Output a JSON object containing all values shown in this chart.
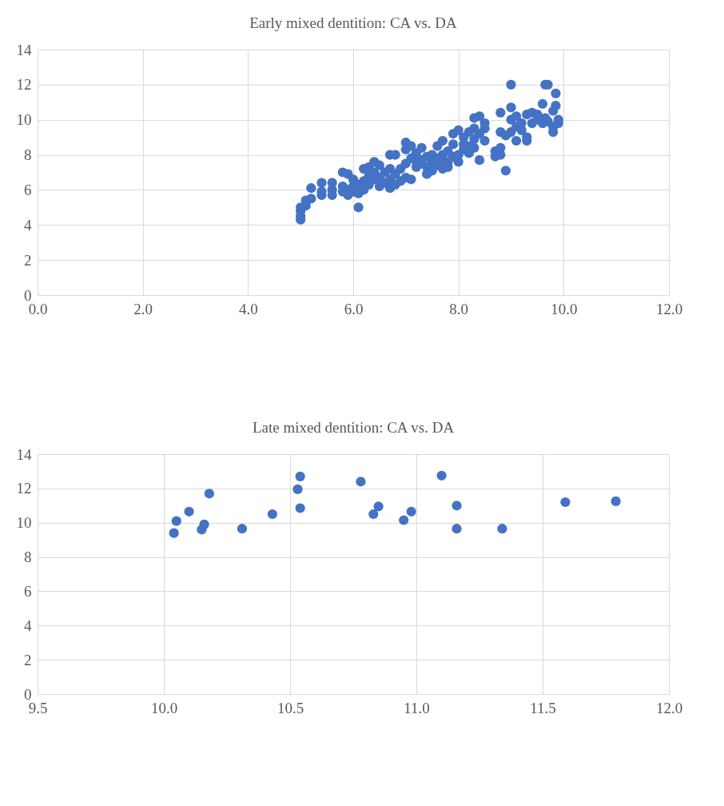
{
  "chart_data": [
    {
      "type": "scatter",
      "title": "Early mixed dentition: CA vs. DA",
      "marker": "circle",
      "grid": true,
      "xlim": [
        0,
        12
      ],
      "xticks": [
        {
          "value": 0,
          "label": "0.0"
        },
        {
          "value": 2,
          "label": "2.0"
        },
        {
          "value": 4,
          "label": "4.0"
        },
        {
          "value": 6,
          "label": "6.0"
        },
        {
          "value": 8,
          "label": "8.0"
        },
        {
          "value": 10,
          "label": "10.0"
        },
        {
          "value": 12,
          "label": "12.0"
        }
      ],
      "ylim": [
        0,
        14
      ],
      "yticks": [
        0,
        2,
        4,
        6,
        8,
        10,
        12,
        14
      ],
      "series": [
        {
          "color": "#4472c4",
          "x": [
            5.0,
            5.0,
            5.0,
            5.0,
            5.1,
            5.1,
            5.2,
            5.2,
            5.4,
            5.4,
            5.4,
            5.6,
            5.6,
            5.6,
            5.8,
            5.8,
            5.8,
            5.9,
            5.9,
            5.9,
            6.0,
            6.0,
            6.0,
            6.1,
            6.1,
            6.1,
            6.2,
            6.2,
            6.2,
            6.3,
            6.3,
            6.3,
            6.4,
            6.4,
            6.4,
            6.5,
            6.5,
            6.5,
            6.6,
            6.6,
            6.7,
            6.7,
            6.7,
            6.7,
            6.8,
            6.8,
            6.8,
            6.9,
            6.9,
            7.0,
            7.0,
            7.0,
            7.0,
            7.1,
            7.1,
            7.1,
            7.2,
            7.2,
            7.2,
            7.3,
            7.3,
            7.3,
            7.4,
            7.4,
            7.4,
            7.5,
            7.5,
            7.5,
            7.6,
            7.6,
            7.6,
            7.7,
            7.7,
            7.7,
            7.7,
            7.8,
            7.8,
            7.8,
            7.9,
            7.9,
            7.9,
            8.0,
            8.0,
            8.0,
            8.1,
            8.1,
            8.1,
            8.2,
            8.2,
            8.2,
            8.3,
            8.3,
            8.3,
            8.3,
            8.4,
            8.4,
            8.4,
            8.5,
            8.5,
            8.5,
            8.7,
            8.7,
            8.8,
            8.8,
            8.8,
            8.8,
            8.9,
            8.9,
            9.0,
            9.0,
            9.0,
            9.0,
            9.1,
            9.1,
            9.1,
            9.2,
            9.2,
            9.3,
            9.3,
            9.3,
            9.4,
            9.4,
            9.5,
            9.5,
            9.6,
            9.6,
            9.65,
            9.65,
            9.7,
            9.7,
            9.8,
            9.8,
            9.8,
            9.85,
            9.85,
            9.9,
            9.9
          ],
          "values": [
            4.3,
            4.5,
            4.8,
            5.0,
            5.1,
            5.4,
            6.1,
            5.5,
            5.7,
            6.4,
            5.9,
            5.7,
            6.4,
            6.0,
            7.0,
            5.9,
            6.2,
            6.9,
            6.0,
            5.7,
            6.6,
            6.2,
            5.9,
            5.0,
            6.3,
            5.8,
            7.2,
            6.5,
            6.0,
            7.3,
            6.8,
            6.3,
            7.6,
            7.0,
            6.6,
            7.4,
            6.7,
            6.2,
            7.0,
            6.4,
            8.0,
            7.2,
            6.6,
            6.1,
            6.9,
            6.3,
            8.0,
            7.2,
            6.5,
            8.7,
            8.3,
            7.5,
            6.7,
            8.5,
            7.8,
            6.6,
            8.1,
            7.6,
            7.3,
            8.4,
            7.7,
            7.5,
            7.9,
            7.3,
            6.9,
            8.0,
            7.6,
            7.1,
            8.5,
            7.8,
            7.4,
            8.8,
            8.0,
            7.2,
            7.5,
            8.2,
            7.6,
            7.3,
            9.2,
            8.6,
            7.9,
            9.4,
            8.0,
            7.6,
            9.0,
            8.3,
            8.6,
            9.3,
            8.5,
            8.1,
            10.1,
            9.5,
            8.9,
            8.4,
            10.2,
            9.2,
            7.7,
            9.8,
            9.5,
            8.8,
            8.2,
            7.9,
            10.4,
            9.3,
            8.0,
            8.4,
            9.1,
            7.1,
            12.0,
            10.7,
            10.0,
            9.3,
            10.2,
            8.8,
            9.6,
            9.8,
            9.4,
            10.3,
            9.0,
            8.8,
            10.4,
            9.8,
            10.3,
            10.0,
            10.9,
            9.8,
            12.0,
            10.1,
            12.0,
            9.9,
            10.5,
            9.6,
            9.3,
            11.5,
            10.8,
            10.0,
            9.8
          ]
        }
      ]
    },
    {
      "type": "scatter",
      "title": "Late mixed dentition: CA vs. DA",
      "marker": "circle",
      "grid": true,
      "xlim": [
        9.5,
        12
      ],
      "xticks": [
        9.5,
        {
          "value": 10,
          "label": "10.0"
        },
        10.5,
        {
          "value": 11,
          "label": "11.0"
        },
        11.5,
        {
          "value": 12,
          "label": "12.0"
        }
      ],
      "ylim": [
        0,
        14
      ],
      "yticks": [
        0,
        2,
        4,
        6,
        8,
        10,
        12,
        14
      ],
      "series": [
        {
          "color": "#4472c4",
          "x": [
            10.05,
            10.04,
            10.1,
            10.15,
            10.16,
            10.18,
            10.31,
            10.43,
            10.53,
            10.54,
            10.54,
            10.78,
            10.83,
            10.85,
            10.95,
            10.98,
            11.1,
            11.16,
            11.16,
            11.34,
            11.59,
            11.79
          ],
          "values": [
            10.1,
            9.4,
            10.65,
            9.6,
            9.9,
            11.7,
            9.65,
            10.5,
            11.95,
            12.7,
            10.85,
            12.4,
            10.5,
            10.95,
            10.15,
            10.65,
            12.75,
            11.0,
            9.65,
            9.65,
            11.2,
            11.25
          ]
        }
      ]
    }
  ]
}
